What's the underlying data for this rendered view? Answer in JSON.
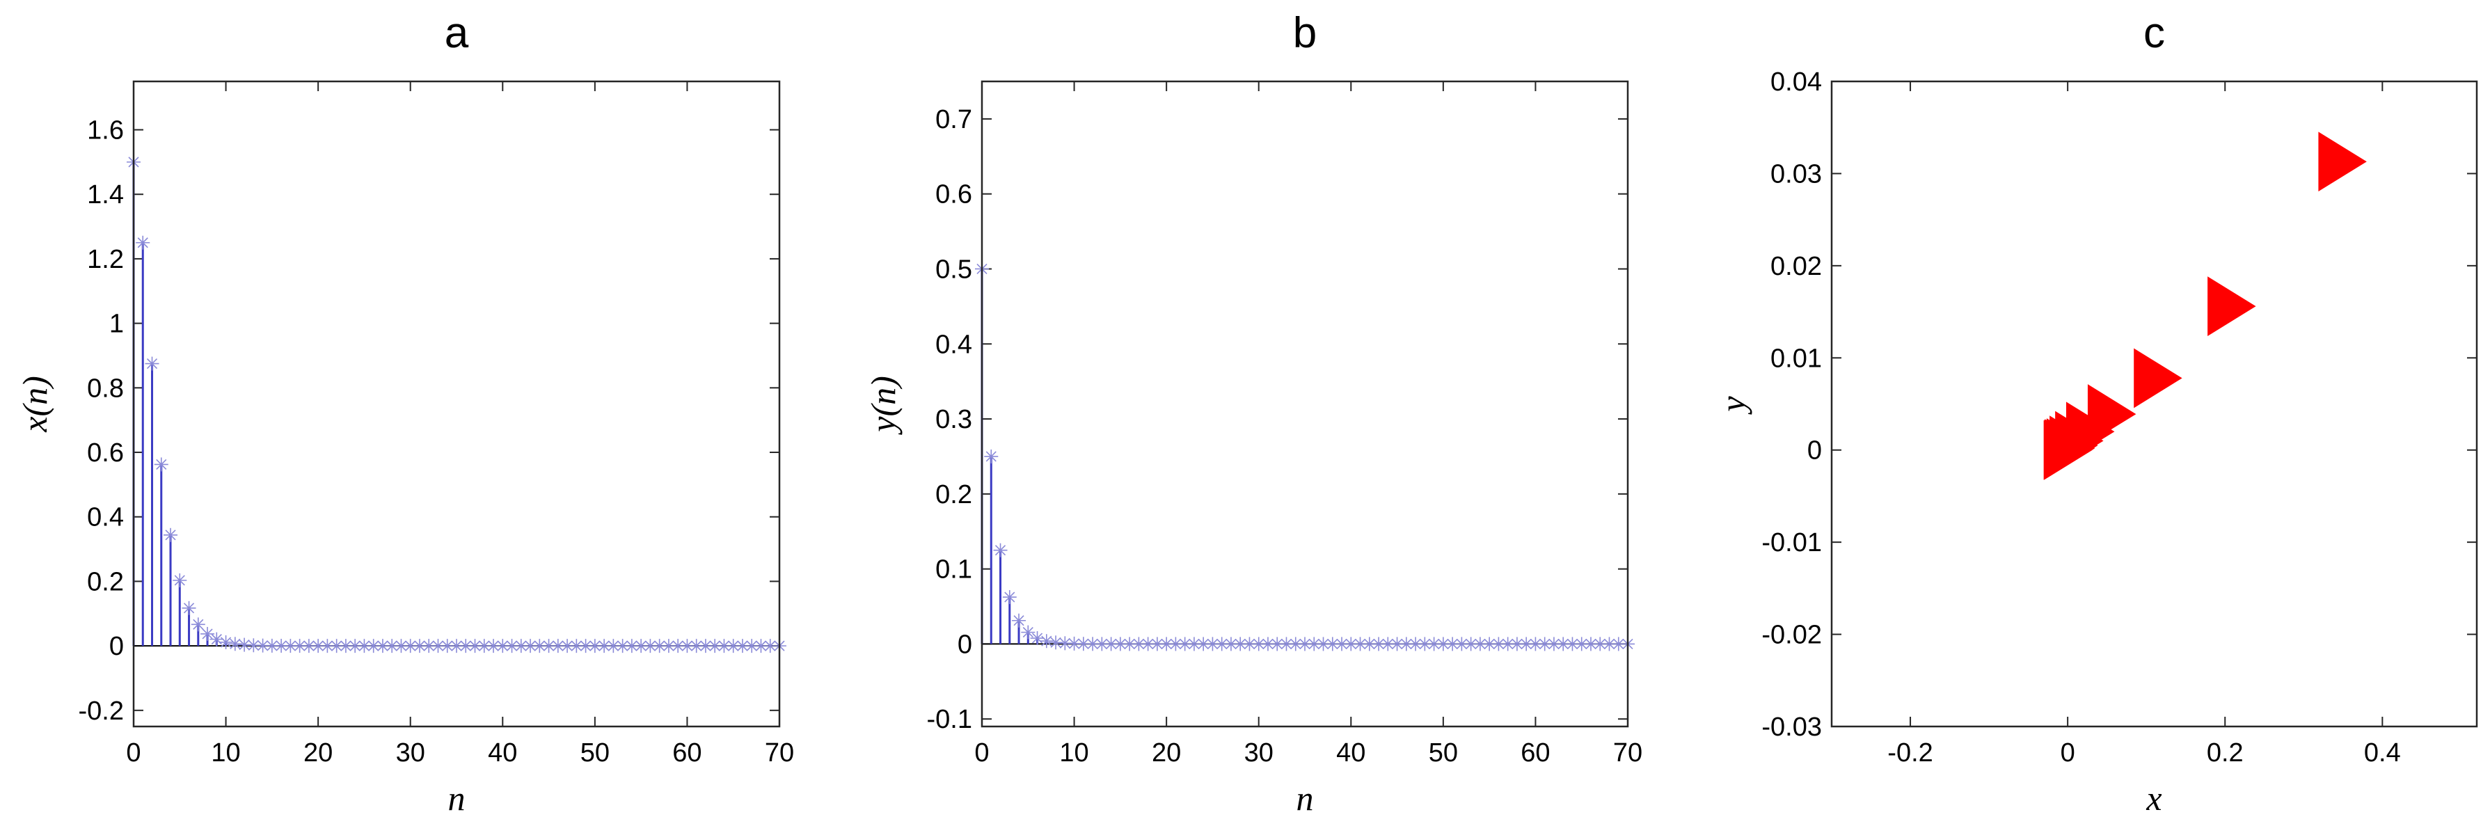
{
  "chart_data": [
    {
      "type": "stem",
      "title": "a",
      "xlabel": "n",
      "ylabel": "x(n)",
      "xlim": [
        0,
        70
      ],
      "ylim": [
        -0.25,
        1.75
      ],
      "xticks": [
        0,
        10,
        20,
        30,
        40,
        50,
        60,
        70
      ],
      "yticks": [
        -0.2,
        0,
        0.2,
        0.4,
        0.6,
        0.8,
        1,
        1.2,
        1.4,
        1.6
      ],
      "ytick_labels": [
        "-0.2",
        "0",
        "0.2",
        "0.4",
        "0.6",
        "0.8",
        "1",
        "1.2",
        "1.4",
        "1.6"
      ],
      "grid": false,
      "marker": "asterisk",
      "color": "#3b3bc4",
      "x": [
        0,
        1,
        2,
        3,
        4,
        5,
        6,
        7,
        8,
        9,
        10,
        11,
        12,
        13,
        14,
        15,
        16,
        17,
        18,
        19,
        20,
        21,
        22,
        23,
        24,
        25,
        26,
        27,
        28,
        29,
        30,
        31,
        32,
        33,
        34,
        35,
        36,
        37,
        38,
        39,
        40,
        41,
        42,
        43,
        44,
        45,
        46,
        47,
        48,
        49,
        50,
        51,
        52,
        53,
        54,
        55,
        56,
        57,
        58,
        59,
        60,
        61,
        62,
        63,
        64,
        65,
        66,
        67,
        68,
        69,
        70
      ],
      "values": [
        1.5,
        1.25,
        0.875,
        0.5625,
        0.34375,
        0.2031,
        0.1172,
        0.0664,
        0.0371,
        0.0205,
        0.0112,
        0.0061,
        0.0033,
        0.0018,
        0.001,
        0.0005,
        0.0003,
        0.0001,
        0.0001,
        0,
        0,
        0,
        0,
        0,
        0,
        0,
        0,
        0,
        0,
        0,
        0,
        0,
        0,
        0,
        0,
        0,
        0,
        0,
        0,
        0,
        0,
        0,
        0,
        0,
        0,
        0,
        0,
        0,
        0,
        0,
        0,
        0,
        0,
        0,
        0,
        0,
        0,
        0,
        0,
        0,
        0,
        0,
        0,
        0,
        0,
        0,
        0,
        0,
        0,
        0,
        0
      ]
    },
    {
      "type": "stem",
      "title": "b",
      "xlabel": "n",
      "ylabel": "y(n)",
      "xlim": [
        0,
        70
      ],
      "ylim": [
        -0.11,
        0.75
      ],
      "xticks": [
        0,
        10,
        20,
        30,
        40,
        50,
        60,
        70
      ],
      "yticks": [
        -0.1,
        0,
        0.1,
        0.2,
        0.3,
        0.4,
        0.5,
        0.6,
        0.7
      ],
      "ytick_labels": [
        "-0.1",
        "0",
        "0.1",
        "0.2",
        "0.3",
        "0.4",
        "0.5",
        "0.6",
        "0.7"
      ],
      "grid": false,
      "marker": "asterisk",
      "color": "#3b3bc4",
      "x": [
        0,
        1,
        2,
        3,
        4,
        5,
        6,
        7,
        8,
        9,
        10,
        11,
        12,
        13,
        14,
        15,
        16,
        17,
        18,
        19,
        20,
        21,
        22,
        23,
        24,
        25,
        26,
        27,
        28,
        29,
        30,
        31,
        32,
        33,
        34,
        35,
        36,
        37,
        38,
        39,
        40,
        41,
        42,
        43,
        44,
        45,
        46,
        47,
        48,
        49,
        50,
        51,
        52,
        53,
        54,
        55,
        56,
        57,
        58,
        59,
        60,
        61,
        62,
        63,
        64,
        65,
        66,
        67,
        68,
        69,
        70
      ],
      "values": [
        0.5,
        0.25,
        0.125,
        0.0625,
        0.03125,
        0.0156,
        0.0078,
        0.0039,
        0.002,
        0.001,
        0.0005,
        0.0002,
        0.0001,
        0,
        0,
        0,
        0,
        0,
        0,
        0,
        0,
        0,
        0,
        0,
        0,
        0,
        0,
        0,
        0,
        0,
        0,
        0,
        0,
        0,
        0,
        0,
        0,
        0,
        0,
        0,
        0,
        0,
        0,
        0,
        0,
        0,
        0,
        0,
        0,
        0,
        0,
        0,
        0,
        0,
        0,
        0,
        0,
        0,
        0,
        0,
        0,
        0,
        0,
        0,
        0,
        0,
        0,
        0,
        0,
        0,
        0
      ]
    },
    {
      "type": "scatter",
      "title": "c",
      "xlabel": "x",
      "ylabel": "y",
      "xlim": [
        -0.3,
        0.52
      ],
      "ylim": [
        -0.03,
        0.04
      ],
      "xticks": [
        -0.2,
        0,
        0.2,
        0.4
      ],
      "xtick_labels": [
        "-0.2",
        "0",
        "0.2",
        "0.4"
      ],
      "yticks": [
        -0.03,
        -0.02,
        -0.01,
        0,
        0.01,
        0.02,
        0.03,
        0.04
      ],
      "ytick_labels": [
        "-0.03",
        "-0.02",
        "-0.01",
        "0",
        "0.01",
        "0.02",
        "0.03",
        "0.04"
      ],
      "grid": false,
      "marker": "triangle-right",
      "color": "#ff0000",
      "points": [
        {
          "x": 0.3492,
          "y": 0.0313
        },
        {
          "x": 0.2083,
          "y": 0.0156
        },
        {
          "x": 0.1146,
          "y": 0.0078
        },
        {
          "x": 0.056,
          "y": 0.0039
        },
        {
          "x": 0.0286,
          "y": 0.002
        },
        {
          "x": 0.0146,
          "y": 0.001
        },
        {
          "x": 0.0075,
          "y": 0.0005
        },
        {
          "x": 0.0038,
          "y": 0.0002
        },
        {
          "x": 0.0019,
          "y": 0.0001
        },
        {
          "x": 0.001,
          "y": 0.0001
        },
        {
          "x": 0.0005,
          "y": 0.0
        },
        {
          "x": 0.0,
          "y": 0.0
        }
      ]
    }
  ]
}
